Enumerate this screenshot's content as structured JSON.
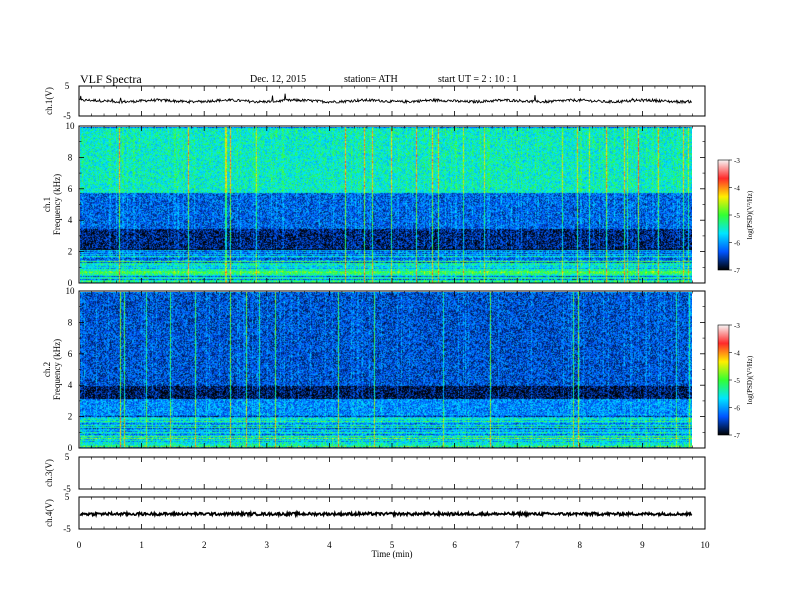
{
  "header": {
    "title": "VLF  Spectra",
    "date": "Dec. 12, 2015",
    "station": "station= ATH",
    "start": "start  UT  =   2  : 10 : 1"
  },
  "colorbar": {
    "label": "log(PSD)(V²/Hz)",
    "ticks": [
      "-3",
      "-4",
      "-5",
      "-6",
      "-7"
    ],
    "colors": [
      "#f7f7f7",
      "#ff2a2a",
      "#ffee00",
      "#33ff33",
      "#00e5ff",
      "#0055ff",
      "#000000"
    ]
  },
  "chart_data": [
    {
      "type": "line",
      "name": "ch.1 waveform",
      "ylabel": "ch.1(V)",
      "ylim": [
        -5,
        5
      ],
      "yticks": [
        "5",
        "-5"
      ],
      "x_range": [
        0,
        9.8
      ],
      "baseline": 0.0,
      "description_values": "noisy waveform around 0 V with spikes up to ~1.5 V"
    },
    {
      "type": "heatmap",
      "name": "ch.1 spectrogram",
      "ylabel": "ch.1",
      "ylabel2": "Frequency  (kHz)",
      "ylim": [
        0,
        10
      ],
      "yticks": [
        "0",
        "2",
        "4",
        "6",
        "8",
        "10"
      ],
      "x_range": [
        0,
        9.8
      ],
      "bands": [
        {
          "from": 0,
          "to": 2,
          "level": -5.8
        },
        {
          "from": 2,
          "to": 3.5,
          "level": -6.7
        },
        {
          "from": 3.5,
          "to": 5.8,
          "level": -6.3
        },
        {
          "from": 5.8,
          "to": 10,
          "level": -5.5
        }
      ]
    },
    {
      "type": "heatmap",
      "name": "ch.2 spectrogram",
      "ylabel": "ch.2",
      "ylabel2": "Frequency  (kHz)",
      "ylim": [
        0,
        10
      ],
      "yticks": [
        "0",
        "2",
        "4",
        "6",
        "8",
        "10"
      ],
      "x_range": [
        0,
        9.8
      ],
      "bands": [
        {
          "from": 0,
          "to": 2,
          "level": -5.8
        },
        {
          "from": 2,
          "to": 3.2,
          "level": -6.1
        },
        {
          "from": 3.2,
          "to": 4.0,
          "level": -6.8
        },
        {
          "from": 4.0,
          "to": 10,
          "level": -6.4
        }
      ]
    },
    {
      "type": "line",
      "name": "ch.3 waveform",
      "ylabel": "ch.3(V)",
      "ylim": [
        -5,
        5
      ],
      "yticks": [
        "5",
        "-5"
      ],
      "x_range": [
        0,
        9.8
      ]
    },
    {
      "type": "line",
      "name": "ch.4 waveform",
      "ylabel": "ch.4(V)",
      "ylim": [
        -5,
        5
      ],
      "yticks": [
        "5",
        "-5"
      ],
      "x_range": [
        0,
        9.8
      ],
      "baseline": -0.3
    }
  ],
  "xaxis": {
    "label": "Time  (min)",
    "range": [
      0,
      10
    ],
    "ticks": [
      "0",
      "1",
      "2",
      "3",
      "4",
      "5",
      "6",
      "7",
      "8",
      "9",
      "10"
    ]
  }
}
